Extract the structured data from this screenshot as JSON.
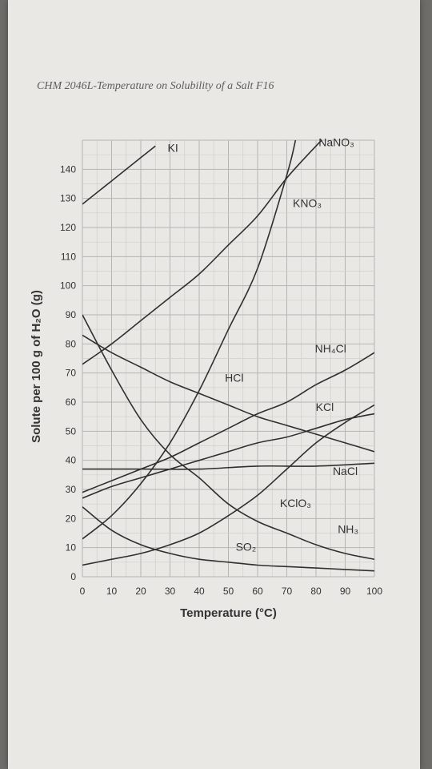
{
  "header": {
    "text": "CHM 2046L-Temperature on Solubility of a Salt F16"
  },
  "chart_data": {
    "type": "line",
    "xlabel": "Temperature (°C)",
    "ylabel": "Solute per 100 g of H₂O (g)",
    "xlim": [
      0,
      100
    ],
    "ylim": [
      0,
      150
    ],
    "xticks": [
      0,
      10,
      20,
      30,
      40,
      50,
      60,
      70,
      80,
      90,
      100
    ],
    "yticks": [
      0,
      10,
      20,
      30,
      40,
      50,
      60,
      70,
      80,
      90,
      100,
      110,
      120,
      130,
      140
    ],
    "grid": true,
    "series": [
      {
        "name": "KI",
        "points": [
          [
            0,
            128
          ],
          [
            20,
            144
          ],
          [
            25,
            148
          ]
        ]
      },
      {
        "name": "NaNO₃",
        "points": [
          [
            0,
            73
          ],
          [
            10,
            80
          ],
          [
            20,
            88
          ],
          [
            30,
            96
          ],
          [
            40,
            104
          ],
          [
            50,
            114
          ],
          [
            60,
            124
          ],
          [
            70,
            137
          ],
          [
            80,
            148
          ],
          [
            82,
            150
          ]
        ]
      },
      {
        "name": "KNO₃",
        "points": [
          [
            0,
            13
          ],
          [
            10,
            21
          ],
          [
            20,
            32
          ],
          [
            30,
            46
          ],
          [
            40,
            64
          ],
          [
            50,
            85
          ],
          [
            60,
            106
          ],
          [
            70,
            138
          ],
          [
            73,
            150
          ]
        ]
      },
      {
        "name": "NH₄Cl",
        "points": [
          [
            0,
            29
          ],
          [
            10,
            33
          ],
          [
            20,
            37
          ],
          [
            30,
            41
          ],
          [
            40,
            46
          ],
          [
            50,
            51
          ],
          [
            60,
            56
          ],
          [
            70,
            60
          ],
          [
            80,
            66
          ],
          [
            90,
            71
          ],
          [
            100,
            77
          ]
        ]
      },
      {
        "name": "KCl",
        "points": [
          [
            0,
            27
          ],
          [
            10,
            31
          ],
          [
            20,
            34
          ],
          [
            30,
            37
          ],
          [
            40,
            40
          ],
          [
            50,
            43
          ],
          [
            60,
            46
          ],
          [
            70,
            48
          ],
          [
            80,
            51
          ],
          [
            90,
            54
          ],
          [
            100,
            56
          ]
        ]
      },
      {
        "name": "HCl",
        "points": [
          [
            0,
            83
          ],
          [
            10,
            77
          ],
          [
            20,
            72
          ],
          [
            30,
            67
          ],
          [
            40,
            63
          ],
          [
            50,
            59
          ],
          [
            60,
            55
          ],
          [
            70,
            52
          ],
          [
            80,
            49
          ],
          [
            90,
            46
          ],
          [
            100,
            43
          ]
        ]
      },
      {
        "name": "NaCl",
        "points": [
          [
            0,
            37
          ],
          [
            20,
            37
          ],
          [
            40,
            37
          ],
          [
            60,
            38
          ],
          [
            80,
            38
          ],
          [
            100,
            39
          ]
        ]
      },
      {
        "name": "KClO₃",
        "points": [
          [
            0,
            4
          ],
          [
            10,
            6
          ],
          [
            20,
            8
          ],
          [
            30,
            11
          ],
          [
            40,
            15
          ],
          [
            50,
            21
          ],
          [
            60,
            28
          ],
          [
            70,
            37
          ],
          [
            80,
            46
          ],
          [
            90,
            53
          ],
          [
            100,
            59
          ]
        ]
      },
      {
        "name": "NH₃",
        "points": [
          [
            0,
            90
          ],
          [
            10,
            71
          ],
          [
            20,
            54
          ],
          [
            30,
            42
          ],
          [
            40,
            34
          ],
          [
            50,
            25
          ],
          [
            60,
            19
          ],
          [
            70,
            15
          ],
          [
            80,
            11
          ],
          [
            90,
            8
          ],
          [
            100,
            6
          ]
        ]
      },
      {
        "name": "SO₂",
        "points": [
          [
            0,
            24
          ],
          [
            10,
            16
          ],
          [
            20,
            11
          ],
          [
            30,
            8
          ],
          [
            40,
            6
          ],
          [
            50,
            5
          ],
          [
            60,
            4
          ],
          [
            70,
            3.5
          ],
          [
            80,
            3
          ],
          [
            90,
            2.5
          ],
          [
            100,
            2
          ]
        ]
      }
    ],
    "labels": [
      {
        "text": "KI",
        "at": [
          31,
          146
        ]
      },
      {
        "text": "NaNO₃",
        "at": [
          87,
          148
        ]
      },
      {
        "text": "KNO₃",
        "at": [
          77,
          127
        ]
      },
      {
        "text": "NH₄Cl",
        "at": [
          85,
          77
        ]
      },
      {
        "text": "HCl",
        "at": [
          52,
          67
        ]
      },
      {
        "text": "KCl",
        "at": [
          83,
          57
        ]
      },
      {
        "text": "NaCl",
        "at": [
          90,
          35
        ]
      },
      {
        "text": "KClO₃",
        "at": [
          73,
          24
        ]
      },
      {
        "text": "NH₃",
        "at": [
          91,
          15
        ]
      },
      {
        "text": "SO₂",
        "at": [
          56,
          9
        ]
      }
    ]
  }
}
